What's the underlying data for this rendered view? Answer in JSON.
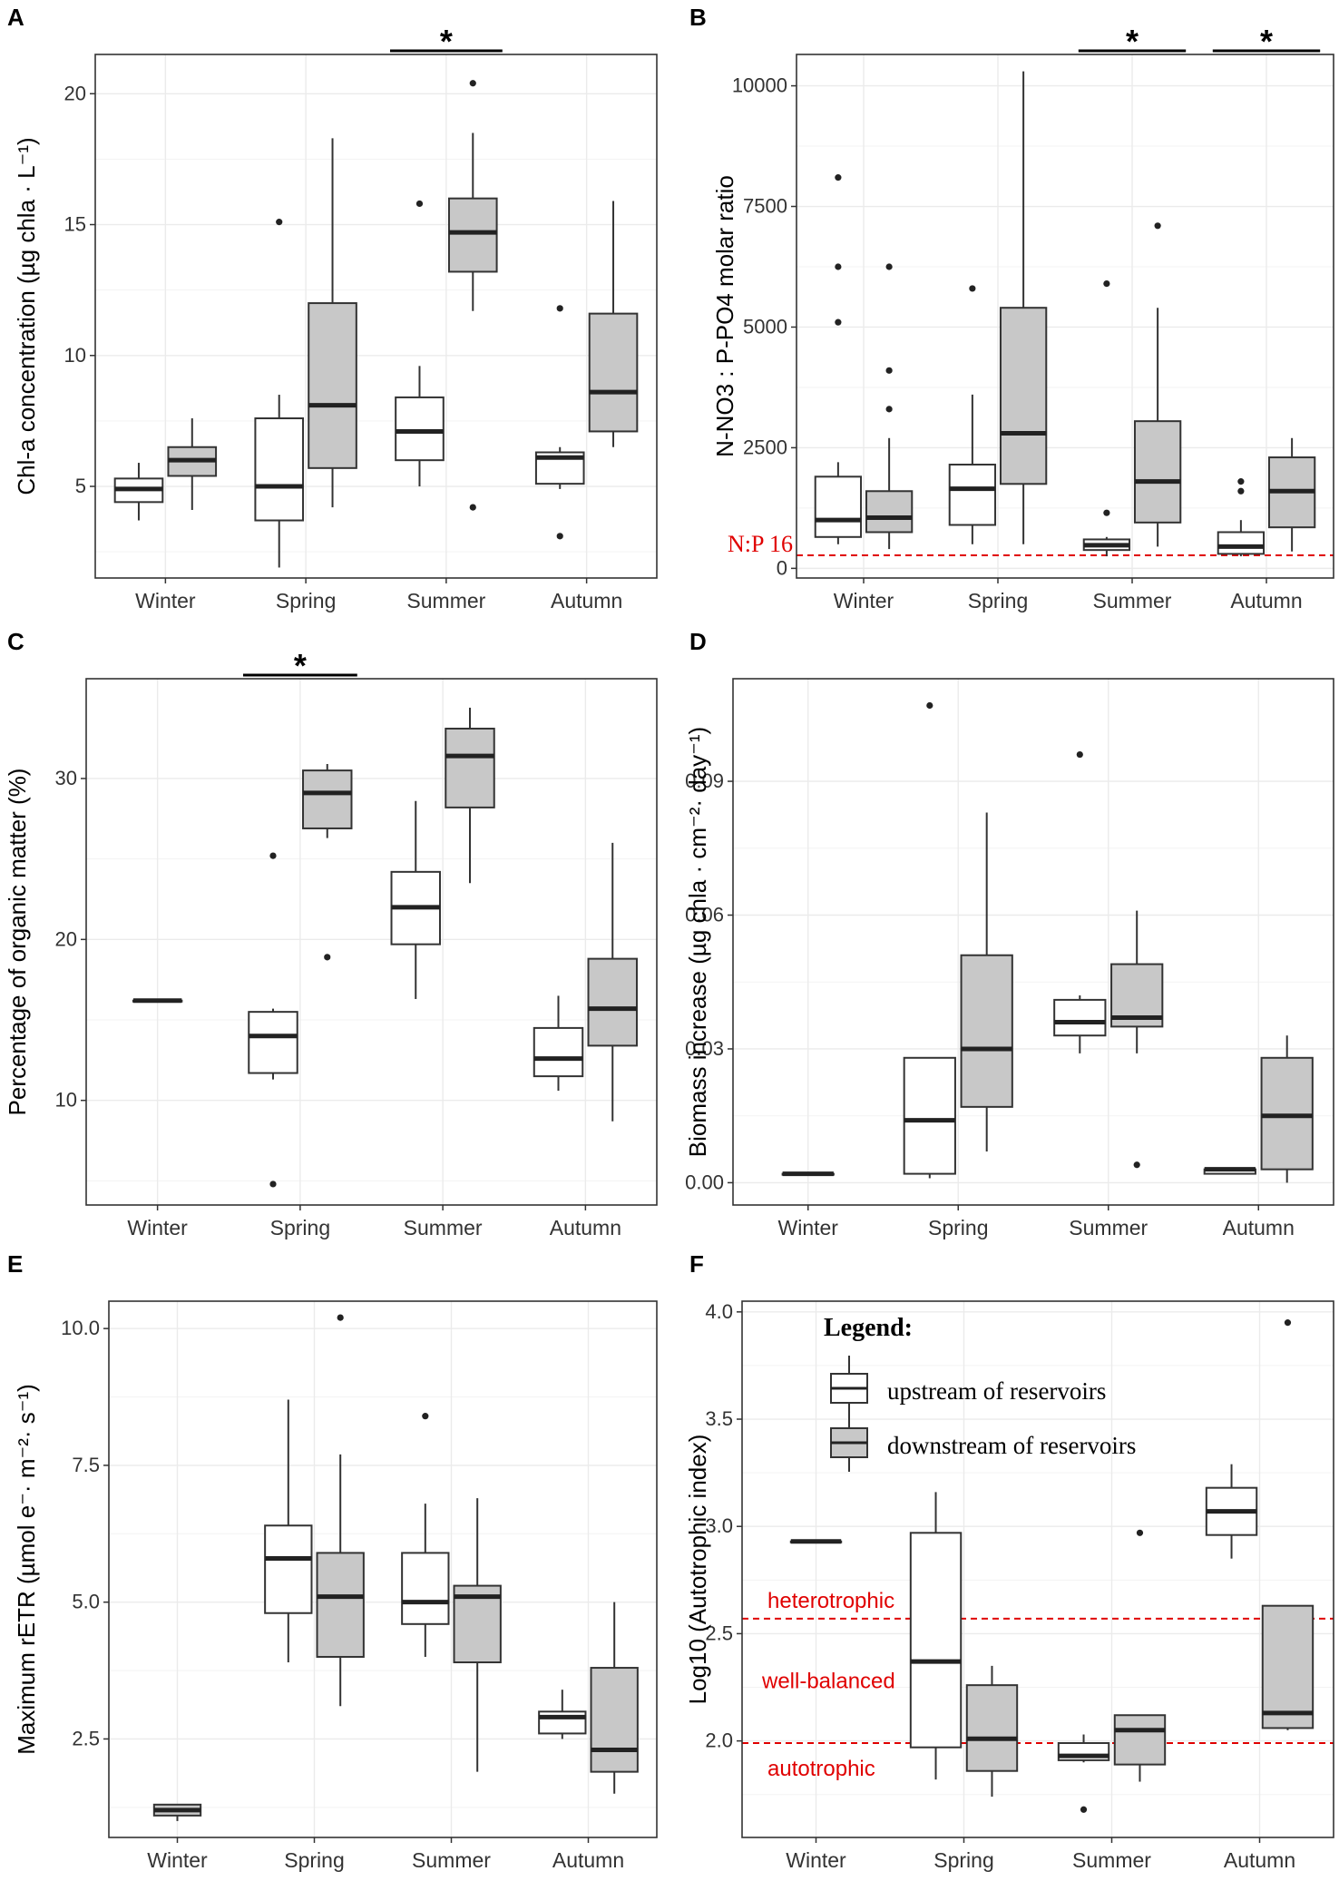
{
  "chart_data": [
    {
      "panel": "A",
      "type": "box",
      "ylabel": "Chl-a concentration (µg chla · L⁻¹)",
      "ylim": [
        1.5,
        21.5
      ],
      "yticks": [
        5,
        10,
        15,
        20
      ],
      "categories": [
        "Winter",
        "Spring",
        "Summer",
        "Autumn"
      ],
      "series": [
        {
          "name": "upstream of reservoirs",
          "fill": "#ffffff",
          "boxes": [
            {
              "whisker_low": 3.7,
              "q1": 4.4,
              "median": 4.9,
              "q3": 5.3,
              "whisker_high": 5.9,
              "outliers": []
            },
            {
              "whisker_low": 1.9,
              "q1": 3.7,
              "median": 5.0,
              "q3": 7.6,
              "whisker_high": 8.5,
              "outliers": [
                15.1
              ]
            },
            {
              "whisker_low": 5.0,
              "q1": 6.0,
              "median": 7.1,
              "q3": 8.4,
              "whisker_high": 9.6,
              "outliers": [
                15.8
              ]
            },
            {
              "whisker_low": 4.9,
              "q1": 5.1,
              "median": 6.1,
              "q3": 6.3,
              "whisker_high": 6.5,
              "outliers": [
                11.8,
                3.1
              ]
            }
          ]
        },
        {
          "name": "downstream of reservoirs",
          "fill": "#c8c8c8",
          "boxes": [
            {
              "whisker_low": 4.1,
              "q1": 5.4,
              "median": 6.0,
              "q3": 6.5,
              "whisker_high": 7.6,
              "outliers": []
            },
            {
              "whisker_low": 4.2,
              "q1": 5.7,
              "median": 8.1,
              "q3": 12.0,
              "whisker_high": 18.3,
              "outliers": []
            },
            {
              "whisker_low": 11.7,
              "q1": 13.2,
              "median": 14.7,
              "q3": 16.0,
              "whisker_high": 18.5,
              "outliers": [
                20.4,
                4.2
              ]
            },
            {
              "whisker_low": 6.5,
              "q1": 7.1,
              "median": 8.6,
              "q3": 11.6,
              "whisker_high": 15.9,
              "outliers": []
            }
          ]
        }
      ],
      "significance": [
        {
          "category": "Summer",
          "label": "*"
        }
      ]
    },
    {
      "panel": "B",
      "type": "box",
      "ylabel": "N-NO3 : P-PO4 molar ratio",
      "ylim": [
        -200,
        10650
      ],
      "yticks": [
        0,
        2500,
        5000,
        7500,
        10000
      ],
      "categories": [
        "Winter",
        "Spring",
        "Summer",
        "Autumn"
      ],
      "reference_lines": [
        {
          "y": 270,
          "label": "N:P 16",
          "color": "#e00000"
        }
      ],
      "series": [
        {
          "name": "upstream of reservoirs",
          "fill": "#ffffff",
          "boxes": [
            {
              "whisker_low": 500,
              "q1": 650,
              "median": 1000,
              "q3": 1900,
              "whisker_high": 2200,
              "outliers": [
                8100,
                6250,
                5100
              ]
            },
            {
              "whisker_low": 500,
              "q1": 900,
              "median": 1650,
              "q3": 2150,
              "whisker_high": 3600,
              "outliers": [
                5800
              ]
            },
            {
              "whisker_low": 250,
              "q1": 380,
              "median": 480,
              "q3": 600,
              "whisker_high": 650,
              "outliers": [
                5900,
                1150
              ]
            },
            {
              "whisker_low": 250,
              "q1": 300,
              "median": 450,
              "q3": 750,
              "whisker_high": 1000,
              "outliers": [
                1800,
                1600
              ]
            }
          ]
        },
        {
          "name": "downstream of reservoirs",
          "fill": "#c8c8c8",
          "boxes": [
            {
              "whisker_low": 400,
              "q1": 750,
              "median": 1050,
              "q3": 1600,
              "whisker_high": 2700,
              "outliers": [
                6250,
                4100,
                3300
              ]
            },
            {
              "whisker_low": 500,
              "q1": 1750,
              "median": 2800,
              "q3": 5400,
              "whisker_high": 10300,
              "outliers": []
            },
            {
              "whisker_low": 450,
              "q1": 950,
              "median": 1800,
              "q3": 3050,
              "whisker_high": 5400,
              "outliers": [
                7100
              ]
            },
            {
              "whisker_low": 350,
              "q1": 850,
              "median": 1600,
              "q3": 2300,
              "whisker_high": 2700,
              "outliers": []
            }
          ]
        }
      ],
      "significance": [
        {
          "category": "Summer",
          "label": "*"
        },
        {
          "category": "Autumn",
          "label": "*"
        }
      ]
    },
    {
      "panel": "C",
      "type": "box",
      "ylabel": "Percentage of organic matter (%)",
      "ylim": [
        3.5,
        36.2
      ],
      "yticks": [
        10,
        20,
        30
      ],
      "categories": [
        "Winter",
        "Spring",
        "Summer",
        "Autumn"
      ],
      "series": [
        {
          "name": "upstream of reservoirs",
          "fill": "#ffffff",
          "boxes": [
            {
              "whisker_low": 16.2,
              "q1": 16.2,
              "median": 16.2,
              "q3": 16.2,
              "whisker_high": 16.2,
              "outliers": []
            },
            {
              "whisker_low": 11.3,
              "q1": 11.7,
              "median": 14.0,
              "q3": 15.5,
              "whisker_high": 15.7,
              "outliers": [
                25.2,
                4.8
              ]
            },
            {
              "whisker_low": 16.3,
              "q1": 19.7,
              "median": 22.0,
              "q3": 24.2,
              "whisker_high": 28.6,
              "outliers": []
            },
            {
              "whisker_low": 10.6,
              "q1": 11.5,
              "median": 12.6,
              "q3": 14.5,
              "whisker_high": 16.5,
              "outliers": []
            }
          ]
        },
        {
          "name": "downstream of reservoirs",
          "fill": "#c8c8c8",
          "boxes": [
            null,
            {
              "whisker_low": 26.3,
              "q1": 26.9,
              "median": 29.1,
              "q3": 30.5,
              "whisker_high": 30.9,
              "outliers": [
                18.9
              ]
            },
            {
              "whisker_low": 23.5,
              "q1": 28.2,
              "median": 31.4,
              "q3": 33.1,
              "whisker_high": 34.4,
              "outliers": []
            },
            {
              "whisker_low": 8.7,
              "q1": 13.4,
              "median": 15.7,
              "q3": 18.8,
              "whisker_high": 26.0,
              "outliers": []
            }
          ]
        }
      ],
      "significance": [
        {
          "category": "Spring",
          "label": "*"
        }
      ]
    },
    {
      "panel": "D",
      "type": "box",
      "ylabel": "Biomass increase (µg chla · cm⁻²· day⁻¹)",
      "ylim": [
        -0.005,
        0.113
      ],
      "yticks": [
        0.0,
        0.03,
        0.06,
        0.09
      ],
      "ytick_labels": [
        "0.00",
        "0.03",
        "0.06",
        "0.09"
      ],
      "categories": [
        "Winter",
        "Spring",
        "Summer",
        "Autumn"
      ],
      "series": [
        {
          "name": "upstream of reservoirs",
          "fill": "#ffffff",
          "boxes": [
            {
              "whisker_low": 0.002,
              "q1": 0.002,
              "median": 0.002,
              "q3": 0.002,
              "whisker_high": 0.002,
              "outliers": []
            },
            {
              "whisker_low": 0.001,
              "q1": 0.002,
              "median": 0.014,
              "q3": 0.028,
              "whisker_high": 0.028,
              "outliers": [
                0.107
              ]
            },
            {
              "whisker_low": 0.029,
              "q1": 0.033,
              "median": 0.036,
              "q3": 0.041,
              "whisker_high": 0.042,
              "outliers": [
                0.096
              ]
            },
            {
              "whisker_low": 0.002,
              "q1": 0.002,
              "median": 0.003,
              "q3": 0.003,
              "whisker_high": 0.003,
              "outliers": []
            }
          ]
        },
        {
          "name": "downstream of reservoirs",
          "fill": "#c8c8c8",
          "boxes": [
            null,
            {
              "whisker_low": 0.007,
              "q1": 0.017,
              "median": 0.03,
              "q3": 0.051,
              "whisker_high": 0.083,
              "outliers": []
            },
            {
              "whisker_low": 0.029,
              "q1": 0.035,
              "median": 0.037,
              "q3": 0.049,
              "whisker_high": 0.061,
              "outliers": [
                0.004
              ]
            },
            {
              "whisker_low": 0.0,
              "q1": 0.003,
              "median": 0.015,
              "q3": 0.028,
              "whisker_high": 0.033,
              "outliers": []
            }
          ]
        }
      ],
      "significance": []
    },
    {
      "panel": "E",
      "type": "box",
      "ylabel": "Maximum rETR (µmol e⁻· m⁻²· s⁻¹)",
      "ylim": [
        0.7,
        10.5
      ],
      "yticks": [
        2.5,
        5.0,
        7.5,
        10.0
      ],
      "ytick_labels": [
        "2.5",
        "5.0",
        "7.5",
        "10.0"
      ],
      "categories": [
        "Winter",
        "Spring",
        "Summer",
        "Autumn"
      ],
      "series": [
        {
          "name": "upstream of reservoirs",
          "fill": "#ffffff",
          "boxes": [
            null,
            {
              "whisker_low": 3.9,
              "q1": 4.8,
              "median": 5.8,
              "q3": 6.4,
              "whisker_high": 8.7,
              "outliers": []
            },
            {
              "whisker_low": 4.0,
              "q1": 4.6,
              "median": 5.0,
              "q3": 5.9,
              "whisker_high": 6.8,
              "outliers": [
                8.4
              ]
            },
            {
              "whisker_low": 2.5,
              "q1": 2.6,
              "median": 2.9,
              "q3": 3.0,
              "whisker_high": 3.4,
              "outliers": []
            }
          ]
        },
        {
          "name": "downstream of reservoirs",
          "fill": "#c8c8c8",
          "boxes": [
            {
              "whisker_low": 1.0,
              "q1": 1.1,
              "median": 1.2,
              "q3": 1.3,
              "whisker_high": 1.3,
              "outliers": []
            },
            {
              "whisker_low": 3.1,
              "q1": 4.0,
              "median": 5.1,
              "q3": 5.9,
              "whisker_high": 7.7,
              "outliers": [
                10.2
              ]
            },
            {
              "whisker_low": 1.9,
              "q1": 3.9,
              "median": 5.1,
              "q3": 5.3,
              "whisker_high": 6.9,
              "outliers": []
            },
            {
              "whisker_low": 1.5,
              "q1": 1.9,
              "median": 2.3,
              "q3": 3.8,
              "whisker_high": 5.0,
              "outliers": []
            }
          ]
        }
      ],
      "significance": []
    },
    {
      "panel": "F",
      "type": "box",
      "ylabel": "Log10 (Autotrophic index)",
      "ylim": [
        1.55,
        4.05
      ],
      "yticks": [
        2.0,
        2.5,
        3.0,
        3.5,
        4.0
      ],
      "ytick_labels": [
        "2.0",
        "2.5",
        "3.0",
        "3.5",
        "4.0"
      ],
      "categories": [
        "Winter",
        "Spring",
        "Summer",
        "Autumn"
      ],
      "reference_lines": [
        {
          "y": 2.57,
          "label": "heterotrophic",
          "color": "#e00000"
        },
        {
          "y": 1.99,
          "label": "autotrophic",
          "color": "#e00000"
        }
      ],
      "band_label": "well-balanced",
      "legend": {
        "title": "Legend:",
        "items": [
          {
            "label": "upstream of reservoirs",
            "fill": "#ffffff"
          },
          {
            "label": "downstream of reservoirs",
            "fill": "#c8c8c8"
          }
        ]
      },
      "series": [
        {
          "name": "upstream of reservoirs",
          "fill": "#ffffff",
          "boxes": [
            {
              "whisker_low": 2.93,
              "q1": 2.93,
              "median": 2.93,
              "q3": 2.93,
              "whisker_high": 2.93,
              "outliers": []
            },
            {
              "whisker_low": 1.82,
              "q1": 1.97,
              "median": 2.37,
              "q3": 2.97,
              "whisker_high": 3.16,
              "outliers": []
            },
            {
              "whisker_low": 1.9,
              "q1": 1.91,
              "median": 1.93,
              "q3": 1.99,
              "whisker_high": 2.03,
              "outliers": [
                1.68
              ]
            },
            {
              "whisker_low": 2.85,
              "q1": 2.96,
              "median": 3.07,
              "q3": 3.18,
              "whisker_high": 3.29,
              "outliers": []
            }
          ]
        },
        {
          "name": "downstream of reservoirs",
          "fill": "#c8c8c8",
          "boxes": [
            null,
            {
              "whisker_low": 1.74,
              "q1": 1.86,
              "median": 2.01,
              "q3": 2.26,
              "whisker_high": 2.35,
              "outliers": []
            },
            {
              "whisker_low": 1.81,
              "q1": 1.89,
              "median": 2.05,
              "q3": 2.12,
              "whisker_high": 2.12,
              "outliers": [
                2.97
              ]
            },
            {
              "whisker_low": 2.05,
              "q1": 2.06,
              "median": 2.13,
              "q3": 2.63,
              "whisker_high": 2.63,
              "outliers": [
                3.95
              ]
            }
          ]
        }
      ],
      "significance": []
    }
  ]
}
